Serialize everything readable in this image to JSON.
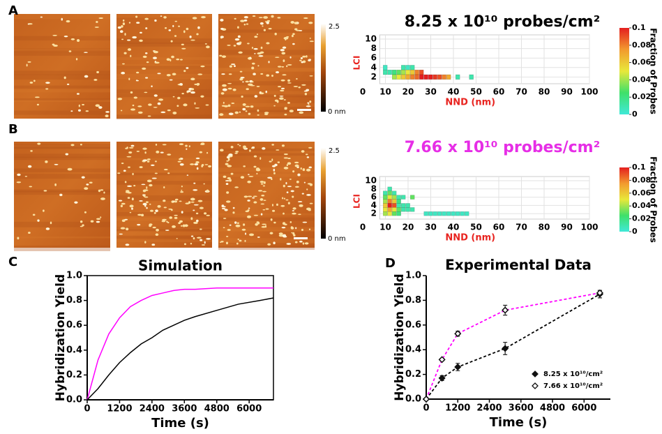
{
  "panel_labels": [
    "A",
    "B",
    "C",
    "D"
  ],
  "afm_colorbars": [
    {
      "max": "2.5",
      "min": "0 nm"
    },
    {
      "max": "2.5",
      "min": "0 nm"
    }
  ],
  "chart_data": [
    {
      "type": "heatmap",
      "title": "8.25 x 10¹⁰ probes/cm²",
      "title_color": "#000000",
      "xlabel": "NND (nm)",
      "ylabel": "LCI",
      "label_color": "#e8231f",
      "x": [
        10,
        10,
        12,
        14,
        14,
        16,
        16,
        18,
        18,
        18,
        20,
        20,
        20,
        22,
        22,
        22,
        24,
        24,
        26,
        26,
        28,
        30,
        32,
        34,
        36,
        38,
        42,
        48
      ],
      "y": [
        4,
        3,
        3,
        3,
        2,
        3,
        2,
        4,
        3,
        2,
        4,
        3,
        2,
        4,
        3,
        2,
        3,
        2,
        3,
        2,
        2,
        2,
        2,
        2,
        2,
        2,
        2,
        2
      ],
      "values": [
        0.005,
        0.01,
        0.01,
        0.02,
        0.04,
        0.03,
        0.05,
        0.01,
        0.04,
        0.06,
        0.005,
        0.05,
        0.07,
        0.01,
        0.06,
        0.08,
        0.08,
        0.085,
        0.09,
        0.1,
        0.1,
        0.1,
        0.095,
        0.09,
        0.08,
        0.07,
        0.01,
        0.01
      ],
      "xlim": [
        0,
        100
      ],
      "ylim": [
        0,
        10
      ],
      "xticks": [
        0,
        10,
        20,
        30,
        40,
        50,
        60,
        70,
        80,
        90,
        100
      ],
      "yticks": [
        2,
        4,
        6,
        8,
        10
      ],
      "colorbar_label": "Fraction of Probes",
      "clim": [
        0,
        0.1
      ],
      "cticks": [
        0,
        0.02,
        0.04,
        0.06,
        0.08,
        0.1
      ],
      "colormap": [
        "#40e8d8",
        "#3ee06a",
        "#e8e83a",
        "#f29a2e",
        "#e41f1f"
      ]
    },
    {
      "type": "heatmap",
      "title": "7.66 x 10¹⁰ probes/cm²",
      "title_color": "#e62ee6",
      "xlabel": "NND (nm)",
      "ylabel": "LCI",
      "label_color": "#e8231f",
      "x": [
        10,
        10,
        10,
        10,
        10,
        10,
        12,
        12,
        12,
        12,
        12,
        12,
        12,
        14,
        14,
        14,
        14,
        14,
        14,
        16,
        16,
        16,
        16,
        16,
        18,
        18,
        18,
        20,
        20,
        22,
        22,
        28,
        30,
        32,
        34,
        36,
        38,
        40,
        42,
        44,
        46
      ],
      "y": [
        7,
        6,
        5,
        4,
        3,
        2,
        8,
        7,
        6,
        5,
        4,
        3,
        2,
        7,
        6,
        5,
        4,
        3,
        2,
        6,
        5,
        4,
        3,
        2,
        6,
        4,
        3,
        4,
        3,
        6,
        3,
        2,
        2,
        2,
        2,
        2,
        2,
        2,
        2,
        2,
        2
      ],
      "values": [
        0.01,
        0.03,
        0.04,
        0.06,
        0.05,
        0.04,
        0.01,
        0.03,
        0.05,
        0.08,
        0.1,
        0.07,
        0.05,
        0.01,
        0.04,
        0.06,
        0.09,
        0.05,
        0.03,
        0.01,
        0.02,
        0.01,
        0.03,
        0.02,
        0.01,
        0.01,
        0.01,
        0.01,
        0.01,
        0.03,
        0.01,
        0.005,
        0.005,
        0.005,
        0.005,
        0.005,
        0.005,
        0.005,
        0.005,
        0.005,
        0.005
      ],
      "xlim": [
        0,
        100
      ],
      "ylim": [
        0,
        10
      ],
      "xticks": [
        0,
        10,
        20,
        30,
        40,
        50,
        60,
        70,
        80,
        90,
        100
      ],
      "yticks": [
        2,
        4,
        6,
        8,
        10
      ],
      "colorbar_label": "Fraction of Probes",
      "clim": [
        0,
        0.1
      ],
      "cticks": [
        0,
        0.02,
        0.04,
        0.06,
        0.08,
        0.1
      ],
      "colormap": [
        "#40e8d8",
        "#3ee06a",
        "#e8e83a",
        "#f29a2e",
        "#e41f1f"
      ]
    },
    {
      "type": "line",
      "title": "Simulation",
      "xlabel": "Time (s)",
      "ylabel": "Hybridization Yield",
      "box": true,
      "x": [
        0,
        400,
        800,
        1200,
        1600,
        2000,
        2400,
        2800,
        3200,
        3600,
        4000,
        4800,
        5600,
        6400,
        6900
      ],
      "series": [
        {
          "color": "#ff00ff",
          "values": [
            0,
            0.32,
            0.53,
            0.66,
            0.75,
            0.8,
            0.84,
            0.86,
            0.88,
            0.89,
            0.89,
            0.9,
            0.9,
            0.9,
            0.9
          ]
        },
        {
          "color": "#000000",
          "values": [
            0,
            0.09,
            0.2,
            0.3,
            0.38,
            0.45,
            0.5,
            0.56,
            0.6,
            0.64,
            0.67,
            0.72,
            0.77,
            0.8,
            0.82
          ]
        }
      ],
      "xlim": [
        0,
        6900
      ],
      "ylim": [
        0,
        1
      ],
      "xticks": [
        0,
        1200,
        2400,
        3600,
        4800,
        6000
      ],
      "yticks": [
        {
          "value": 0,
          "label": "0.0"
        },
        0.2,
        0.4,
        0.6,
        0.8,
        {
          "value": 1,
          "label": "1.0"
        }
      ]
    },
    {
      "type": "scatter",
      "title": "Experimental Data",
      "xlabel": "Time (s)",
      "ylabel": "Hybridization Yield",
      "box": false,
      "legend": "lower right",
      "x": [
        0,
        600,
        1200,
        3000,
        6600
      ],
      "series": [
        {
          "name": "8.25 x 10¹⁰/cm²",
          "color": "#000000",
          "marker": "filled",
          "values": [
            0,
            0.17,
            0.26,
            0.41,
            0.85
          ],
          "errors": [
            0,
            0.02,
            0.03,
            0.05,
            0.03
          ]
        },
        {
          "name": "7.66 x 10¹⁰/cm²",
          "color": "#ff00ff",
          "marker": "open",
          "values": [
            0,
            0.32,
            0.53,
            0.72,
            0.86
          ],
          "errors": [
            0,
            0.01,
            0.02,
            0.04,
            0.02
          ]
        }
      ],
      "xlim": [
        0,
        7000
      ],
      "ylim": [
        0,
        1
      ],
      "xticks": [
        0,
        1200,
        2400,
        3600,
        4800,
        6000
      ],
      "yticks": [
        {
          "value": 0,
          "label": "0.0"
        },
        0.2,
        0.4,
        0.6,
        0.8,
        {
          "value": 1,
          "label": "1.0"
        }
      ]
    }
  ]
}
